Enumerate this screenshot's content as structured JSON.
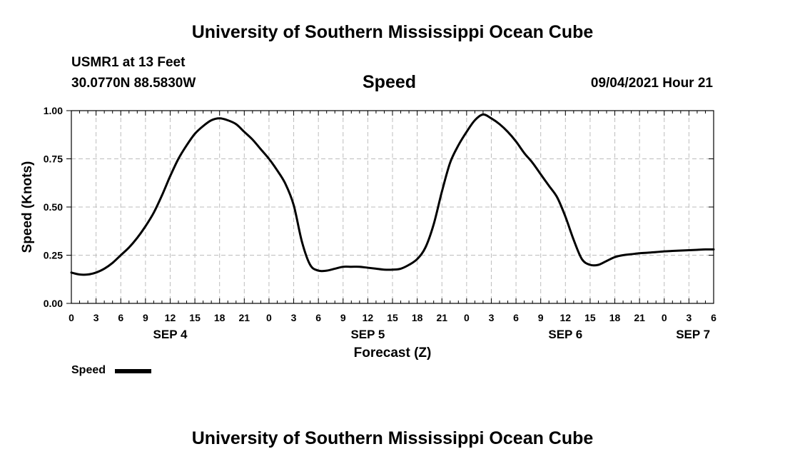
{
  "page": {
    "title_top": "University of Southern Mississippi Ocean Cube",
    "title_bottom": "University of Southern Mississippi Ocean Cube",
    "station": "USMR1 at 13 Feet",
    "coordinates": "30.0770N  88.5830W",
    "datetime": "09/04/2021 Hour 21"
  },
  "chart_data": {
    "type": "line",
    "title": "Speed",
    "xlabel": "Forecast (Z)",
    "ylabel": "Speed (Knots)",
    "xlim": [
      0,
      78
    ],
    "ylim": [
      0,
      1
    ],
    "y_ticks": [
      0,
      0.25,
      0.5,
      0.75,
      1.0
    ],
    "y_tick_labels": [
      "0.00",
      "0.25",
      "0.50",
      "0.75",
      "1.00"
    ],
    "x_ticks": [
      0,
      3,
      6,
      9,
      12,
      15,
      18,
      21,
      24,
      27,
      30,
      33,
      36,
      39,
      42,
      45,
      48,
      51,
      54,
      57,
      60,
      63,
      66,
      69,
      72,
      75,
      78
    ],
    "x_tick_labels": [
      "0",
      "3",
      "6",
      "9",
      "12",
      "15",
      "18",
      "21",
      "0",
      "3",
      "6",
      "9",
      "12",
      "15",
      "18",
      "21",
      "0",
      "3",
      "6",
      "9",
      "12",
      "15",
      "18",
      "21",
      "0",
      "3",
      "6"
    ],
    "day_labels": [
      {
        "label": "SEP 4",
        "x": 12
      },
      {
        "label": "SEP 5",
        "x": 36
      },
      {
        "label": "SEP 6",
        "x": 60
      },
      {
        "label": "SEP 7",
        "x": 75.5
      }
    ],
    "grid": true,
    "legend": "bottom-left",
    "series": [
      {
        "name": "Speed",
        "color": "#000000",
        "x": [
          0,
          1,
          2,
          3,
          4,
          5,
          6,
          7,
          8,
          9,
          10,
          11,
          12,
          13,
          14,
          15,
          16,
          17,
          18,
          19,
          20,
          21,
          22,
          23,
          24,
          25,
          26,
          27,
          28,
          29,
          30,
          31,
          32,
          33,
          34,
          35,
          36,
          37,
          38,
          39,
          40,
          41,
          42,
          43,
          44,
          45,
          46,
          47,
          48,
          49,
          50,
          51,
          52,
          53,
          54,
          55,
          56,
          57,
          58,
          59,
          60,
          61,
          62,
          63,
          64,
          65,
          66,
          67,
          68,
          69,
          70,
          71,
          72,
          73,
          74,
          75,
          76,
          77,
          78
        ],
        "values": [
          0.16,
          0.15,
          0.15,
          0.16,
          0.18,
          0.21,
          0.25,
          0.29,
          0.34,
          0.4,
          0.47,
          0.56,
          0.66,
          0.75,
          0.82,
          0.88,
          0.92,
          0.95,
          0.96,
          0.95,
          0.93,
          0.89,
          0.85,
          0.8,
          0.75,
          0.69,
          0.62,
          0.51,
          0.32,
          0.2,
          0.17,
          0.17,
          0.18,
          0.19,
          0.19,
          0.19,
          0.185,
          0.18,
          0.175,
          0.175,
          0.18,
          0.2,
          0.23,
          0.29,
          0.41,
          0.58,
          0.73,
          0.82,
          0.89,
          0.95,
          0.98,
          0.96,
          0.93,
          0.89,
          0.84,
          0.78,
          0.73,
          0.67,
          0.61,
          0.55,
          0.45,
          0.33,
          0.23,
          0.2,
          0.2,
          0.22,
          0.24,
          0.25,
          0.255,
          0.26,
          0.263,
          0.266,
          0.27,
          0.272,
          0.274,
          0.276,
          0.278,
          0.28,
          0.28
        ]
      }
    ]
  }
}
